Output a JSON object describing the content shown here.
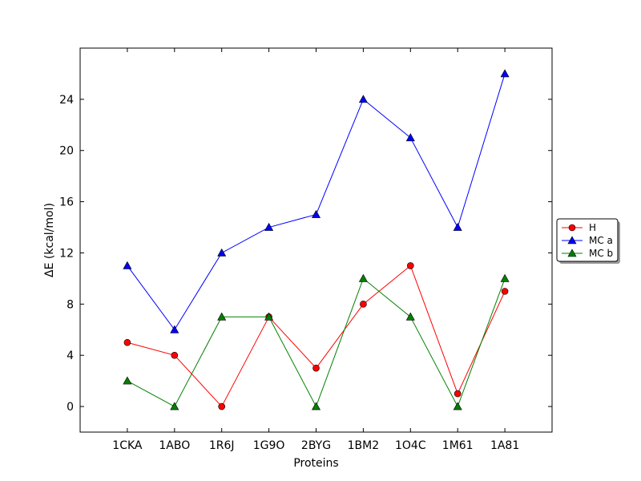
{
  "chart_data": {
    "type": "line",
    "title": "",
    "xlabel": "Proteins",
    "ylabel": "ΔE (kcal/mol)",
    "categories": [
      "1CKA",
      "1ABO",
      "1R6J",
      "1G9O",
      "2BYG",
      "1BM2",
      "1O4C",
      "1M61",
      "1A81"
    ],
    "ylim": [
      -2,
      28
    ],
    "yticks": [
      0,
      4,
      8,
      12,
      16,
      20,
      24
    ],
    "grid": false,
    "legend_placement": "right",
    "series": [
      {
        "name": "H",
        "values": [
          5,
          4,
          0,
          7,
          3,
          8,
          11,
          1,
          9
        ],
        "color": "#ff0000",
        "marker": "circle"
      },
      {
        "name": "MC a",
        "values": [
          11,
          6,
          12,
          14,
          15,
          24,
          21,
          14,
          26
        ],
        "color": "#0000ff",
        "marker": "triangle"
      },
      {
        "name": "MC b",
        "values": [
          2,
          0,
          7,
          7,
          0,
          10,
          7,
          0,
          10
        ],
        "color": "#008000",
        "marker": "triangle"
      }
    ]
  }
}
